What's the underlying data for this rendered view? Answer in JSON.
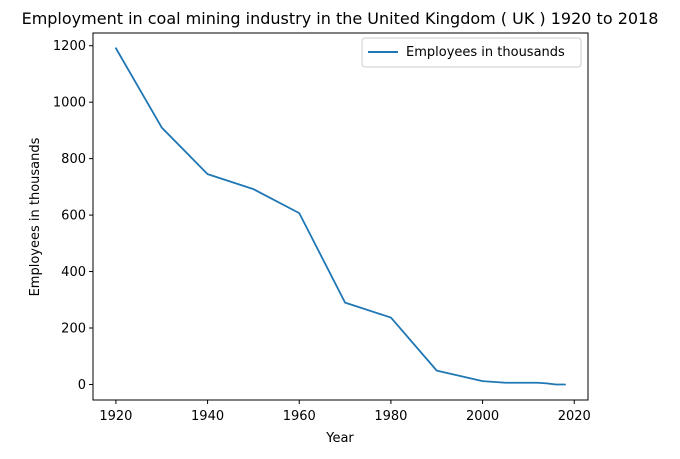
{
  "chart_data": {
    "type": "line",
    "title": "Employment in coal mining industry in the United Kingdom ( UK ) 1920 to 2018",
    "xlabel": "Year",
    "ylabel": "Employees in thousands",
    "xlim": [
      1915,
      2023
    ],
    "ylim": [
      -55,
      1245
    ],
    "xticks": [
      1920,
      1940,
      1960,
      1980,
      2000,
      2020
    ],
    "yticks": [
      0,
      200,
      400,
      600,
      800,
      1000,
      1200
    ],
    "grid": false,
    "legend_position": "top-right",
    "series": [
      {
        "name": "Employees in thousands",
        "color": "#1f77b4",
        "x": [
          1920,
          1930,
          1940,
          1950,
          1960,
          1970,
          1980,
          1990,
          2000,
          2005,
          2010,
          2012,
          2014,
          2016,
          2018
        ],
        "y": [
          1191,
          910,
          745,
          692,
          607,
          290,
          237,
          49,
          12,
          6,
          6,
          6,
          4,
          0,
          0
        ]
      }
    ]
  }
}
